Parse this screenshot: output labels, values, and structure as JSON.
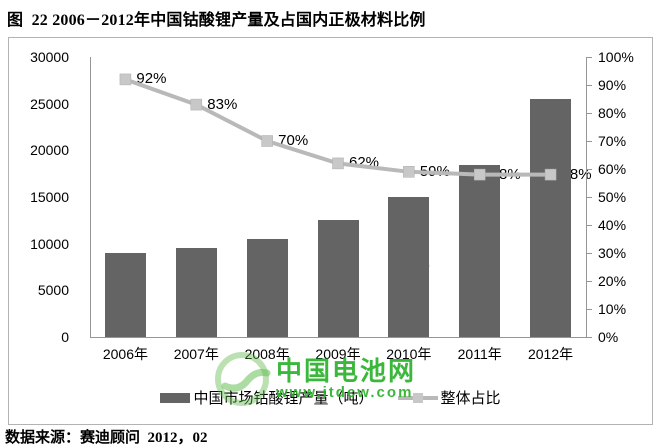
{
  "title": "图  22 2006－2012年中国钴酸锂产量及占国内正极材料比例",
  "footer": "数据来源：赛迪顾问  2012，02",
  "watermark": {
    "name": "中国电池网",
    "url": "www.itdcw.com",
    "color": "#2bb32b"
  },
  "colors": {
    "bar": "#646464",
    "line": "#b9b9b9",
    "marker": "#c8c8c8",
    "axis": "#969696",
    "frame_border": "#b3b3b3",
    "label_text": "#000000"
  },
  "chart_data": {
    "type": "bar",
    "subtype": "bar+line combo, secondary percent axis",
    "title": "图 22 2006－2012年中国钴酸锂产量及占国内正极材料比例",
    "categories": [
      "2006年",
      "2007年",
      "2008年",
      "2009年",
      "2010年",
      "2011年",
      "2012年"
    ],
    "series": [
      {
        "name": "中国市场钴酸锂产量（吨）",
        "type": "bar",
        "axis": "left",
        "values": [
          9000,
          9500,
          10500,
          12500,
          15000,
          18400,
          25500
        ],
        "labels": [
          "9000",
          "9500",
          "10500",
          "12500",
          "15000",
          "18400",
          "25500"
        ]
      },
      {
        "name": "整体占比",
        "type": "line",
        "axis": "right",
        "values": [
          92,
          83,
          70,
          62,
          59,
          58,
          58
        ],
        "labels": [
          "92%",
          "83%",
          "70%",
          "62%",
          "59%",
          "58%",
          "58%"
        ]
      }
    ],
    "left_axis": {
      "min": 0,
      "max": 30000,
      "step": 5000,
      "ticks": [
        "30000",
        "25000",
        "20000",
        "15000",
        "10000",
        "5000",
        "0"
      ]
    },
    "right_axis": {
      "min": 0,
      "max": 100,
      "step": 10,
      "ticks": [
        "100%",
        "90%",
        "80%",
        "70%",
        "60%",
        "50%",
        "40%",
        "30%",
        "20%",
        "10%",
        "0%"
      ]
    },
    "grid": false,
    "legend_position": "bottom"
  }
}
